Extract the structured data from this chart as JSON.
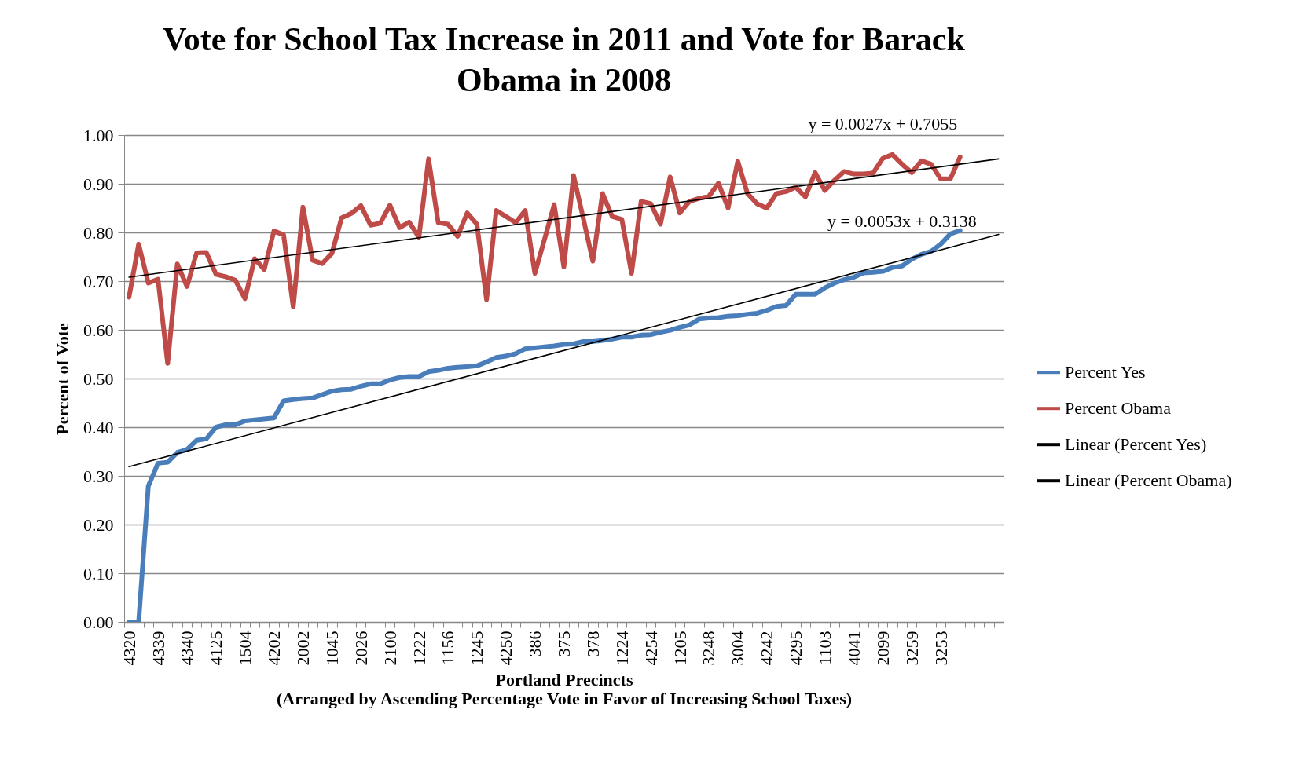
{
  "chart_data": {
    "type": "line",
    "title": "Vote for School Tax Increase in 2011 and Vote for Barack Obama in 2008",
    "xlabel": "Portland Precincts\n(Arranged by Ascending Percentage Vote in Favor of Increasing School Taxes)",
    "ylabel": "Percent of Vote",
    "categories": [
      "4320",
      null,
      null,
      "4339",
      null,
      null,
      "4340",
      null,
      null,
      "4125",
      null,
      null,
      "1504",
      null,
      null,
      "4202",
      null,
      null,
      "2002",
      null,
      null,
      "1045",
      null,
      null,
      "2026",
      null,
      null,
      "2100",
      null,
      null,
      "1222",
      null,
      null,
      "1156",
      null,
      null,
      "1245",
      null,
      null,
      "4250",
      null,
      null,
      "386",
      null,
      null,
      "375",
      null,
      null,
      "378",
      null,
      null,
      "1224",
      null,
      null,
      "4254",
      null,
      null,
      "1205",
      null,
      null,
      "3248",
      null,
      null,
      "3004",
      null,
      null,
      "4242",
      null,
      null,
      "4295",
      null,
      null,
      "1103",
      null,
      null,
      "4041",
      null,
      null,
      "2099",
      null,
      null,
      "3259",
      null,
      null,
      "3253",
      null,
      null,
      null,
      null,
      null,
      null
    ],
    "series": [
      {
        "name": "Percent Yes",
        "color": "#4a7ebb",
        "values": [
          0,
          0,
          0.279,
          0.326,
          0.328,
          0.348,
          0.354,
          0.373,
          0.376,
          0.4,
          0.405,
          0.405,
          0.413,
          0.415,
          0.417,
          0.419,
          0.454,
          0.457,
          0.459,
          0.46,
          0.467,
          0.474,
          0.477,
          0.478,
          0.484,
          0.489,
          0.489,
          0.497,
          0.502,
          0.504,
          0.504,
          0.514,
          0.517,
          0.521,
          0.523,
          0.524,
          0.526,
          0.534,
          0.543,
          0.546,
          0.551,
          0.561,
          0.563,
          0.565,
          0.567,
          0.57,
          0.571,
          0.576,
          0.576,
          0.578,
          0.581,
          0.585,
          0.585,
          0.589,
          0.59,
          0.595,
          0.599,
          0.605,
          0.61,
          0.622,
          0.624,
          0.625,
          0.628,
          0.629,
          0.632,
          0.634,
          0.64,
          0.648,
          0.65,
          0.673,
          0.673,
          0.673,
          0.686,
          0.696,
          0.703,
          0.708,
          0.717,
          0.718,
          0.72,
          0.728,
          0.731,
          0.745,
          0.755,
          0.761,
          0.776,
          0.797,
          0.804,
          null,
          null,
          null,
          null
        ]
      },
      {
        "name": "Percent Obama",
        "color": "#be4b48",
        "values": [
          0.667,
          0.776,
          0.696,
          0.704,
          0.531,
          0.735,
          0.689,
          0.758,
          0.759,
          0.714,
          0.709,
          0.702,
          0.664,
          0.746,
          0.724,
          0.803,
          0.795,
          0.647,
          0.852,
          0.743,
          0.736,
          0.757,
          0.83,
          0.839,
          0.855,
          0.815,
          0.819,
          0.856,
          0.81,
          0.821,
          0.79,
          0.951,
          0.82,
          0.817,
          0.792,
          0.84,
          0.817,
          0.662,
          0.845,
          0.833,
          0.82,
          0.845,
          0.716,
          0.786,
          0.857,
          0.729,
          0.917,
          0.83,
          0.741,
          0.88,
          0.833,
          0.827,
          0.716,
          0.864,
          0.859,
          0.817,
          0.914,
          0.84,
          0.864,
          0.87,
          0.874,
          0.901,
          0.85,
          0.946,
          0.88,
          0.859,
          0.85,
          0.88,
          0.884,
          0.893,
          0.873,
          0.923,
          0.886,
          0.907,
          0.925,
          0.92,
          0.92,
          0.922,
          0.952,
          0.96,
          0.94,
          0.923,
          0.947,
          0.94,
          0.91,
          0.91,
          0.955,
          null,
          null,
          null,
          null
        ]
      },
      {
        "name": "Linear (Percent Yes)",
        "color": "#000000",
        "values": [
          0.319,
          null,
          null,
          null,
          null,
          null,
          null,
          null,
          null,
          null,
          null,
          null,
          null,
          null,
          null,
          null,
          null,
          null,
          null,
          null,
          null,
          null,
          null,
          null,
          null,
          null,
          null,
          null,
          null,
          null,
          null,
          null,
          null,
          null,
          null,
          null,
          null,
          null,
          null,
          null,
          null,
          null,
          null,
          null,
          null,
          null,
          null,
          null,
          null,
          null,
          null,
          null,
          null,
          null,
          null,
          null,
          null,
          null,
          null,
          null,
          null,
          null,
          null,
          null,
          null,
          null,
          null,
          null,
          null,
          null,
          null,
          null,
          null,
          null,
          null,
          null,
          null,
          null,
          null,
          null,
          null,
          null,
          null,
          null,
          null,
          null,
          null,
          null,
          null,
          null,
          0.796
        ]
      },
      {
        "name": "Linear (Percent Obama)",
        "color": "#000000",
        "values": [
          0.708,
          null,
          null,
          null,
          null,
          null,
          null,
          null,
          null,
          null,
          null,
          null,
          null,
          null,
          null,
          null,
          null,
          null,
          null,
          null,
          null,
          null,
          null,
          null,
          null,
          null,
          null,
          null,
          null,
          null,
          null,
          null,
          null,
          null,
          null,
          null,
          null,
          null,
          null,
          null,
          null,
          null,
          null,
          null,
          null,
          null,
          null,
          null,
          null,
          null,
          null,
          null,
          null,
          null,
          null,
          null,
          null,
          null,
          null,
          null,
          null,
          null,
          null,
          null,
          null,
          null,
          null,
          null,
          null,
          null,
          null,
          null,
          null,
          null,
          null,
          null,
          null,
          null,
          null,
          null,
          null,
          null,
          null,
          null,
          null,
          null,
          null,
          null,
          null,
          null,
          0.951
        ]
      }
    ],
    "annotations": [
      "y = 0.0027x + 0.7055",
      "y = 0.0053x + 0.3138"
    ],
    "ylim": [
      0,
      1
    ],
    "yticks": [
      {
        "value": 0,
        "label": "0.00"
      },
      {
        "value": 0.1,
        "label": "0.10"
      },
      {
        "value": 0.2,
        "label": "0.20"
      },
      {
        "value": 0.3,
        "label": "0.30"
      },
      {
        "value": 0.4,
        "label": "0.40"
      },
      {
        "value": 0.5,
        "label": "0.50"
      },
      {
        "value": 0.6,
        "label": "0.60"
      },
      {
        "value": 0.7,
        "label": "0.70"
      },
      {
        "value": 0.8,
        "label": "0.80"
      },
      {
        "value": 0.9,
        "label": "0.90"
      },
      {
        "value": 1,
        "label": "1.00"
      }
    ],
    "grid": "y",
    "legend": "right",
    "marker": "none",
    "line_style": "solid"
  }
}
